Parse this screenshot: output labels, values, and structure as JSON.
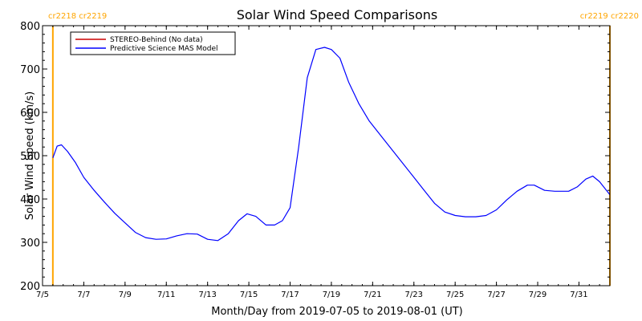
{
  "chart_data": {
    "type": "line",
    "title": "Solar Wind Speed Comparisons",
    "xlabel": "Month/Day from 2019-07-05 to 2019-08-01 (UT)",
    "ylabel": "Solar Wind Speed (km/s)",
    "xlim": [
      "2019-07-05T12:00",
      "2019-08-02T00:00"
    ],
    "ylim": [
      200,
      800
    ],
    "grid": false,
    "legend_position": "top-left",
    "x_ticks": [
      {
        "x": "2019-07-05T12:00",
        "label": "7/5"
      },
      {
        "x": "2019-07-07T12:00",
        "label": "7/7"
      },
      {
        "x": "2019-07-09T12:00",
        "label": "7/9"
      },
      {
        "x": "2019-07-11T12:00",
        "label": "7/11"
      },
      {
        "x": "2019-07-13T12:00",
        "label": "7/13"
      },
      {
        "x": "2019-07-15T12:00",
        "label": "7/15"
      },
      {
        "x": "2019-07-17T12:00",
        "label": "7/17"
      },
      {
        "x": "2019-07-19T12:00",
        "label": "7/19"
      },
      {
        "x": "2019-07-21T12:00",
        "label": "7/21"
      },
      {
        "x": "2019-07-23T12:00",
        "label": "7/23"
      },
      {
        "x": "2019-07-25T12:00",
        "label": "7/25"
      },
      {
        "x": "2019-07-27T12:00",
        "label": "7/27"
      },
      {
        "x": "2019-07-29T12:00",
        "label": "7/29"
      },
      {
        "x": "2019-07-31T12:00",
        "label": "7/31"
      }
    ],
    "y_ticks": [
      200,
      300,
      400,
      500,
      600,
      700,
      800
    ],
    "carrington_markers": [
      {
        "x": "2019-07-06T00:00",
        "label": "cr2218 cr2219",
        "label_align": "left",
        "color": "#ffa500"
      },
      {
        "x": "2019-08-02T00:00",
        "label": "cr2219 cr2220",
        "label_align": "right",
        "color": "#ffa500"
      }
    ],
    "series": [
      {
        "name": "STEREO-Behind (No data)",
        "color": "#cc0000",
        "points": []
      },
      {
        "name": "Predictive Science MAS Model",
        "color": "#0000ff",
        "points": [
          [
            "2019-07-06T00:00",
            495
          ],
          [
            "2019-07-06T05:00",
            522
          ],
          [
            "2019-07-06T10:00",
            525
          ],
          [
            "2019-07-06T17:00",
            510
          ],
          [
            "2019-07-07T02:00",
            485
          ],
          [
            "2019-07-07T12:00",
            450
          ],
          [
            "2019-07-08T00:00",
            420
          ],
          [
            "2019-07-08T12:00",
            393
          ],
          [
            "2019-07-09T00:00",
            367
          ],
          [
            "2019-07-09T12:00",
            345
          ],
          [
            "2019-07-10T00:00",
            323
          ],
          [
            "2019-07-10T12:00",
            311
          ],
          [
            "2019-07-11T00:00",
            307
          ],
          [
            "2019-07-11T12:00",
            308
          ],
          [
            "2019-07-12T00:00",
            315
          ],
          [
            "2019-07-12T12:00",
            320
          ],
          [
            "2019-07-13T00:00",
            319
          ],
          [
            "2019-07-13T12:00",
            307
          ],
          [
            "2019-07-14T00:00",
            304
          ],
          [
            "2019-07-14T12:00",
            320
          ],
          [
            "2019-07-15T00:00",
            350
          ],
          [
            "2019-07-15T10:00",
            366
          ],
          [
            "2019-07-15T20:00",
            360
          ],
          [
            "2019-07-16T08:00",
            340
          ],
          [
            "2019-07-16T18:00",
            340
          ],
          [
            "2019-07-17T03:00",
            350
          ],
          [
            "2019-07-17T12:00",
            380
          ],
          [
            "2019-07-17T22:00",
            520
          ],
          [
            "2019-07-18T08:00",
            680
          ],
          [
            "2019-07-18T18:00",
            745
          ],
          [
            "2019-07-19T04:00",
            750
          ],
          [
            "2019-07-19T12:00",
            745
          ],
          [
            "2019-07-19T22:00",
            725
          ],
          [
            "2019-07-20T08:00",
            670
          ],
          [
            "2019-07-20T20:00",
            620
          ],
          [
            "2019-07-21T08:00",
            580
          ],
          [
            "2019-07-22T00:00",
            540
          ],
          [
            "2019-07-22T12:00",
            510
          ],
          [
            "2019-07-23T00:00",
            480
          ],
          [
            "2019-07-23T12:00",
            450
          ],
          [
            "2019-07-24T00:00",
            420
          ],
          [
            "2019-07-24T12:00",
            390
          ],
          [
            "2019-07-25T00:00",
            370
          ],
          [
            "2019-07-25T12:00",
            362
          ],
          [
            "2019-07-26T00:00",
            359
          ],
          [
            "2019-07-26T12:00",
            359
          ],
          [
            "2019-07-27T00:00",
            362
          ],
          [
            "2019-07-27T12:00",
            375
          ],
          [
            "2019-07-28T00:00",
            398
          ],
          [
            "2019-07-28T12:00",
            418
          ],
          [
            "2019-07-29T00:00",
            432
          ],
          [
            "2019-07-29T08:00",
            432
          ],
          [
            "2019-07-29T20:00",
            420
          ],
          [
            "2019-07-30T08:00",
            418
          ],
          [
            "2019-07-31T00:00",
            418
          ],
          [
            "2019-07-31T10:00",
            428
          ],
          [
            "2019-07-31T20:00",
            446
          ],
          [
            "2019-08-01T04:00",
            453
          ],
          [
            "2019-08-01T12:00",
            440
          ],
          [
            "2019-08-02T00:00",
            410
          ]
        ]
      }
    ]
  }
}
